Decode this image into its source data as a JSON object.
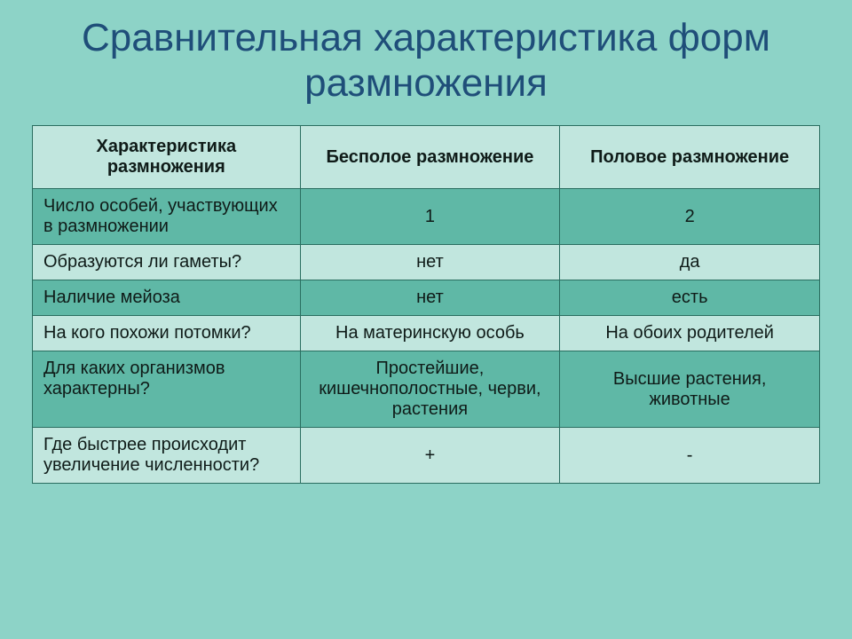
{
  "title": "Сравнительная характеристика форм размножения",
  "columns": [
    "Характеристика размножения",
    "Бесполое размножение",
    "Половое размножение"
  ],
  "rows": [
    {
      "label": "Число особей, участвующих в размножении",
      "asexual": "1",
      "sexual": "2"
    },
    {
      "label": "Образуются ли гаметы?",
      "asexual": "нет",
      "sexual": "да"
    },
    {
      "label": "Наличие мейоза",
      "asexual": "нет",
      "sexual": "есть"
    },
    {
      "label": "На кого похожи потомки?",
      "asexual": "На материнскую особь",
      "sexual": "На обоих родителей"
    },
    {
      "label": "Для каких организмов характерны?",
      "asexual": "Простейшие, кишечнополостные, черви, растения",
      "sexual": "Высшие растения, животные"
    },
    {
      "label": "Где быстрее происходит увеличение численности?",
      "asexual": "+",
      "sexual": "-"
    }
  ],
  "style": {
    "type": "table",
    "background_color": "#8dd3c7",
    "title_color": "#1f4e79",
    "title_fontsize": 44,
    "header_bg": "#c1e6de",
    "row_odd_bg": "#5fb8a6",
    "row_even_bg": "#c1e6de",
    "border_color": "#2a6e60",
    "cell_fontsize": 20,
    "col_widths_pct": [
      34,
      33,
      33
    ]
  }
}
